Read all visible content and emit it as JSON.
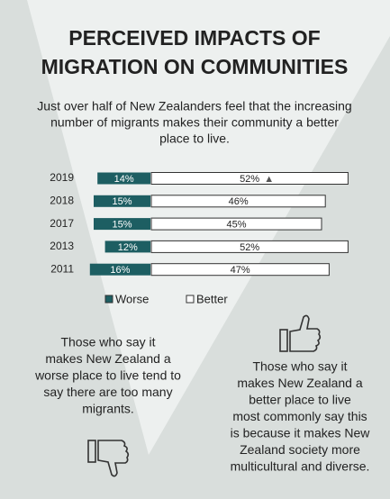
{
  "chart_data": {
    "type": "diverging-bar",
    "title": [
      "PERCEIVED IMPACTS OF",
      "MIGRATION ON COMMUNITIES"
    ],
    "subtitle": [
      "Just over half of New Zealanders feel that the increasing",
      "number of migrants makes their community a better",
      "place to live."
    ],
    "categories": [
      "2019",
      "2018",
      "2017",
      "2013",
      "2011"
    ],
    "series": [
      {
        "name": "Worse",
        "color": "#1d5e62",
        "values": [
          14,
          15,
          15,
          12,
          16
        ],
        "value_labels": [
          "14%",
          "15%",
          "15%",
          "12%",
          "16%"
        ]
      },
      {
        "name": "Better",
        "color": "#ffffff",
        "values": [
          52,
          46,
          45,
          52,
          47
        ],
        "value_labels": [
          "52%",
          "46%",
          "45%",
          "52%",
          "47%"
        ]
      }
    ],
    "annotation": "▲"
  },
  "left_note": [
    "Those who say it",
    "makes New Zealand a",
    "worse place to live tend to",
    "say there are too many",
    "migrants."
  ],
  "right_note": [
    "Those who say it",
    "makes New Zealand a",
    "better place to live",
    "most commonly say this",
    "is because it makes New",
    "Zealand society more",
    "multicultural and diverse."
  ]
}
